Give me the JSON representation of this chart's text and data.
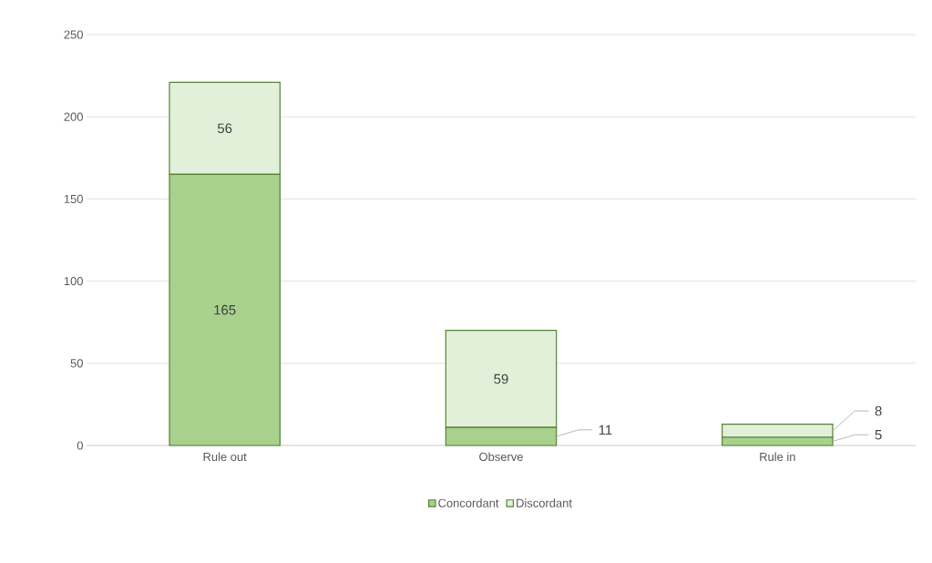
{
  "chart_data": {
    "type": "bar",
    "stacked": true,
    "categories": [
      "Rule out",
      "Observe",
      "Rule in"
    ],
    "series": [
      {
        "name": "Concordant",
        "color": "#a9d18e",
        "values": [
          165,
          11,
          5
        ]
      },
      {
        "name": "Discordant",
        "color": "#e2f0d9",
        "values": [
          56,
          59,
          8
        ]
      }
    ],
    "ylim": [
      0,
      250
    ],
    "yticks": [
      0,
      50,
      100,
      150,
      200,
      250
    ],
    "grid": "y",
    "legend": "bottom",
    "data_labels": true
  }
}
